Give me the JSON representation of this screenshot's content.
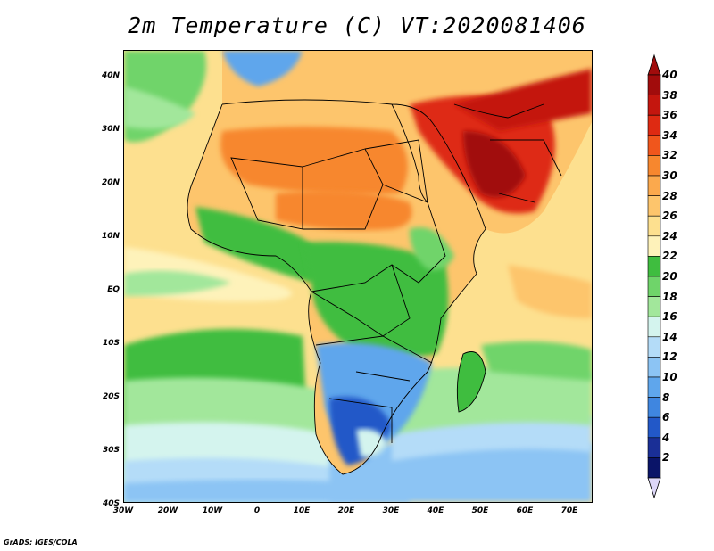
{
  "title": "2m Temperature (C) VT:2020081406",
  "credit": "GrADS: IGES/COLA",
  "map": {
    "lat_labels": [
      "40N",
      "30N",
      "20N",
      "10N",
      "EQ",
      "10S",
      "20S",
      "30S",
      "40S"
    ],
    "lon_labels": [
      "30W",
      "20W",
      "10W",
      "0",
      "10E",
      "20E",
      "30E",
      "40E",
      "50E",
      "60E",
      "70E"
    ],
    "ocean_color": "#f9d98a"
  },
  "colorbar": {
    "labels": [
      "40",
      "38",
      "36",
      "34",
      "32",
      "30",
      "28",
      "26",
      "24",
      "22",
      "20",
      "18",
      "16",
      "14",
      "12",
      "10",
      "8",
      "6",
      "4",
      "2"
    ],
    "colors": [
      "#a10c0c",
      "#c4160e",
      "#de2a12",
      "#f0561c",
      "#f7872e",
      "#fba94d",
      "#fdc56c",
      "#fde08f",
      "#fef2ba",
      "#3fbd3f",
      "#6fd46a",
      "#a2e79b",
      "#d4f4ee",
      "#b4dcf8",
      "#8cc4f4",
      "#5fa6ec",
      "#3f86e0",
      "#2258c8",
      "#1a2f96",
      "#0a1468"
    ],
    "under_color": "#dcd6f7"
  }
}
